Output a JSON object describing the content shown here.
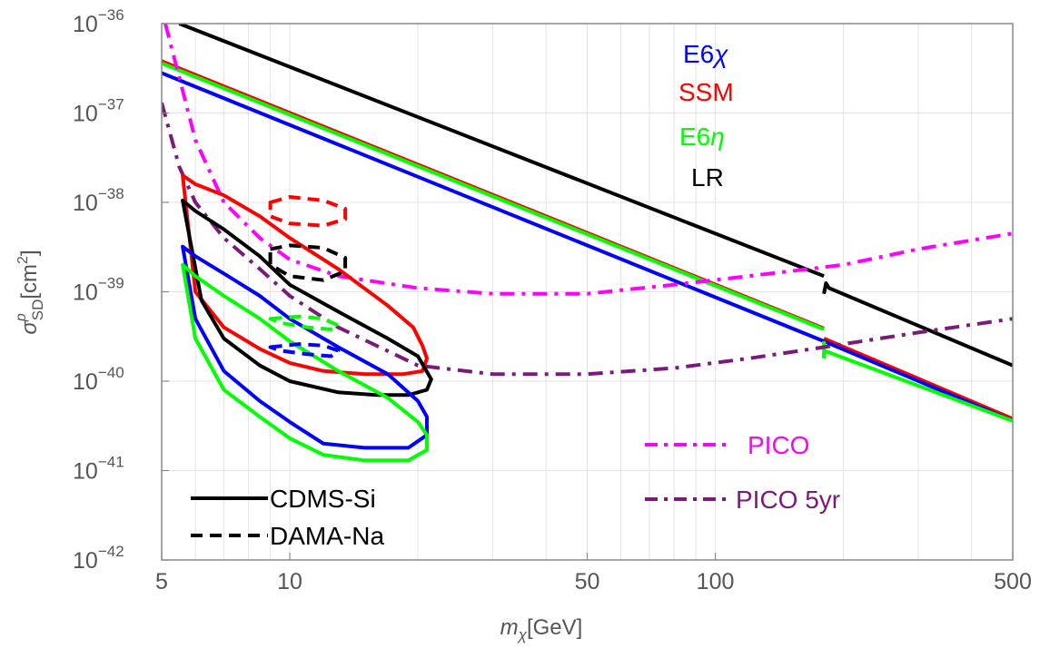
{
  "chart_data": {
    "type": "line",
    "x_scale": "log",
    "y_scale": "log",
    "xlim": [
      5,
      500
    ],
    "ylim": [
      1e-42,
      1e-36
    ],
    "x_ticks": [
      5,
      10,
      50,
      100,
      500
    ],
    "x_tick_labels": [
      "5",
      "10",
      "50",
      "100",
      "500"
    ],
    "y_ticks": [
      -42,
      -41,
      -40,
      -39,
      -38,
      -37,
      -36
    ],
    "y_tick_labels": [
      "10",
      "10",
      "10",
      "10",
      "10",
      "10",
      "10"
    ],
    "y_tick_exponents": [
      "−42",
      "−41",
      "−40",
      "−39",
      "−38",
      "−37",
      "−36"
    ],
    "xlabel": {
      "base": "m",
      "sub": "χ",
      "unit": "[GeV]"
    },
    "ylabel": {
      "base": "σ",
      "sup": "p",
      "sub": "SD",
      "unit_prefix": "[cm",
      "unit_exp": "2",
      "unit_suffix": "]"
    },
    "grid": true,
    "series": [
      {
        "name": "LR",
        "color": "#000000",
        "style": "solid",
        "x": [
          5.5,
          180
        ],
        "y": [
          1e-36,
          1.5e-39
        ]
      },
      {
        "name": "LR",
        "color": "#000000",
        "style": "solid",
        "x": [
          180,
          182,
          185,
          500
        ],
        "y": [
          9.5e-40,
          1.25e-39,
          1.1e-39,
          1.5e-40
        ]
      },
      {
        "name": "SSM",
        "color": "#ff0000",
        "style": "solid",
        "x": [
          5,
          180
        ],
        "y": [
          3.8e-37,
          3.9e-40
        ]
      },
      {
        "name": "E6η",
        "color": "#00ff00",
        "style": "solid",
        "x": [
          5,
          180
        ],
        "y": [
          3.6e-37,
          3.8e-40
        ]
      },
      {
        "name": "E6χ",
        "color": "#0000ff",
        "style": "solid",
        "x": [
          5,
          180
        ],
        "y": [
          2.8e-37,
          2.8e-40
        ]
      },
      {
        "name": "SSM",
        "color": "#ff0000",
        "style": "solid",
        "x": [
          180,
          500
        ],
        "y": [
          3e-40,
          3.8e-41
        ]
      },
      {
        "name": "E6χ",
        "color": "#0000ff",
        "style": "solid",
        "x": [
          180,
          500
        ],
        "y": [
          2.8e-40,
          3.6e-41
        ]
      },
      {
        "name": "E6η",
        "color": "#00ff00",
        "style": "solid",
        "x": [
          180,
          500
        ],
        "y": [
          2.2e-40,
          3.6e-41
        ]
      },
      {
        "name": "E6η",
        "color": "#00ff00",
        "style": "solid",
        "x": [
          180,
          180
        ],
        "y": [
          2.8e-40,
          1.8e-40
        ]
      },
      {
        "name": "PICO",
        "color": "#ff00ff",
        "style": "dashdot",
        "x": [
          5.1,
          5.5,
          6.0,
          7.0,
          8.5,
          10,
          13,
          20,
          30,
          50,
          80,
          120,
          200,
          300,
          500
        ],
        "y": [
          1e-36,
          2.5e-37,
          5e-38,
          1e-38,
          4e-39,
          2.3e-39,
          1.5e-39,
          1.1e-39,
          9.5e-40,
          9.5e-40,
          1.2e-39,
          1.5e-39,
          2e-39,
          3e-39,
          4.5e-39
        ]
      },
      {
        "name": "PICO 5yr",
        "color": "#7a1a7a",
        "style": "dashdot",
        "x": [
          5,
          5.5,
          6,
          7,
          8.5,
          10,
          13,
          20,
          30,
          50,
          80,
          120,
          180,
          300,
          500
        ],
        "y": [
          1.3e-37,
          2.5e-38,
          1e-38,
          4e-39,
          1.8e-39,
          9e-40,
          4e-40,
          1.5e-40,
          1.2e-40,
          1.2e-40,
          1.4e-40,
          1.8e-40,
          2.4e-40,
          3.5e-40,
          5e-40
        ]
      },
      {
        "name": "CDMS-Si",
        "color": "#ff0000",
        "style": "solid",
        "closed": true,
        "x": [
          5.6,
          6,
          7,
          8.5,
          10,
          13,
          17,
          19.5,
          20.5,
          21,
          20.5,
          18.5,
          15,
          12,
          10,
          8.5,
          7,
          6,
          5.6
        ],
        "y": [
          2e-38,
          1.6e-38,
          1.2e-38,
          7e-39,
          4e-39,
          1.8e-39,
          7e-40,
          4e-40,
          2.5e-40,
          1.8e-40,
          1.3e-40,
          1.2e-40,
          1.2e-40,
          1.3e-40,
          1.6e-40,
          2.3e-40,
          4e-40,
          1e-39,
          2e-38
        ]
      },
      {
        "name": "CDMS-Si",
        "color": "#000000",
        "style": "solid",
        "closed": true,
        "x": [
          5.6,
          6,
          7,
          8.5,
          10,
          13,
          17,
          20,
          21.5,
          21,
          19,
          16,
          13,
          10,
          8.5,
          7,
          6.2,
          5.6
        ],
        "y": [
          1.05e-38,
          8e-39,
          5e-39,
          2.5e-39,
          1.2e-39,
          6e-40,
          3e-40,
          1.9e-40,
          1.05e-40,
          8e-41,
          7e-41,
          7e-41,
          7.5e-41,
          1e-40,
          1.5e-40,
          3e-40,
          8e-40,
          1.05e-38
        ]
      },
      {
        "name": "CDMS-Si",
        "color": "#0000ff",
        "style": "solid",
        "closed": true,
        "x": [
          5.6,
          6,
          7,
          8.5,
          10,
          13,
          17,
          20,
          21,
          21,
          19,
          15,
          12,
          10,
          8.5,
          7,
          6,
          5.6
        ],
        "y": [
          3.2e-39,
          2.5e-39,
          1.6e-39,
          9e-40,
          5e-40,
          2.4e-40,
          1.2e-40,
          6e-41,
          4e-41,
          2.5e-41,
          1.8e-41,
          1.8e-41,
          2e-41,
          3.5e-41,
          6e-41,
          1.3e-40,
          5e-40,
          3.2e-39
        ]
      },
      {
        "name": "CDMS-Si",
        "color": "#00ff00",
        "style": "solid",
        "closed": true,
        "x": [
          5.6,
          6,
          7,
          8.5,
          10,
          13,
          17,
          20,
          21,
          21,
          19,
          15,
          12,
          10,
          8.5,
          7,
          6,
          5.6
        ],
        "y": [
          2e-39,
          1.5e-39,
          9e-40,
          5e-40,
          2.8e-40,
          1.3e-40,
          6.5e-41,
          3.5e-41,
          2.5e-41,
          1.7e-41,
          1.3e-41,
          1.3e-41,
          1.5e-41,
          2.3e-41,
          4e-41,
          8e-41,
          3e-40,
          2e-39
        ]
      },
      {
        "name": "DAMA-Na",
        "color": "#ff0000",
        "style": "dashed",
        "closed": true,
        "x": [
          9,
          10,
          12,
          13.5,
          13.5,
          12,
          10,
          9,
          9
        ],
        "y": [
          1e-38,
          1.15e-38,
          1.05e-38,
          8.5e-39,
          6.5e-39,
          5.5e-39,
          5.8e-39,
          7e-39,
          1e-38
        ]
      },
      {
        "name": "DAMA-Na",
        "color": "#000000",
        "style": "dashed",
        "closed": true,
        "x": [
          9,
          10,
          12,
          13.5,
          13.5,
          12,
          10,
          9,
          9
        ],
        "y": [
          3e-39,
          3.3e-39,
          3.1e-39,
          2.4e-39,
          1.7e-39,
          1.35e-39,
          1.5e-39,
          2e-39,
          3e-39
        ]
      },
      {
        "name": "DAMA-Na",
        "color": "#00ff00",
        "style": "dashed",
        "closed": true,
        "x": [
          9,
          10.5,
          12,
          13,
          12.5,
          11,
          9.5,
          9
        ],
        "y": [
          5e-40,
          5.3e-40,
          5e-40,
          4.2e-40,
          3.8e-40,
          4e-40,
          4.5e-40,
          5e-40
        ]
      },
      {
        "name": "DAMA-Na",
        "color": "#0000ff",
        "style": "dashed",
        "closed": true,
        "x": [
          9,
          10.5,
          12,
          13,
          12.5,
          11,
          9.5,
          9
        ],
        "y": [
          2.4e-40,
          2.6e-40,
          2.5e-40,
          2.2e-40,
          1.9e-40,
          2e-40,
          2.2e-40,
          2.4e-40
        ]
      }
    ],
    "legend_top_right": [
      {
        "label_base": "E6",
        "label_italic": "χ",
        "color": "#0000ff"
      },
      {
        "label_base": "SSM",
        "label_italic": "",
        "color": "#ff0000"
      },
      {
        "label_base": "E6",
        "label_italic": "η",
        "color": "#00ff00"
      },
      {
        "label_base": "LR",
        "label_italic": "",
        "color": "#000000"
      }
    ],
    "legend_bottom_left": [
      {
        "label": "CDMS-Si",
        "style": "solid",
        "color": "#000000"
      },
      {
        "label": "DAMA-Na",
        "style": "dashed",
        "color": "#000000"
      }
    ],
    "legend_bottom_right": [
      {
        "label": "PICO",
        "style": "dashdot",
        "color": "#ff00ff"
      },
      {
        "label": "PICO 5yr",
        "style": "dashdot",
        "color": "#7a1a7a"
      }
    ]
  }
}
